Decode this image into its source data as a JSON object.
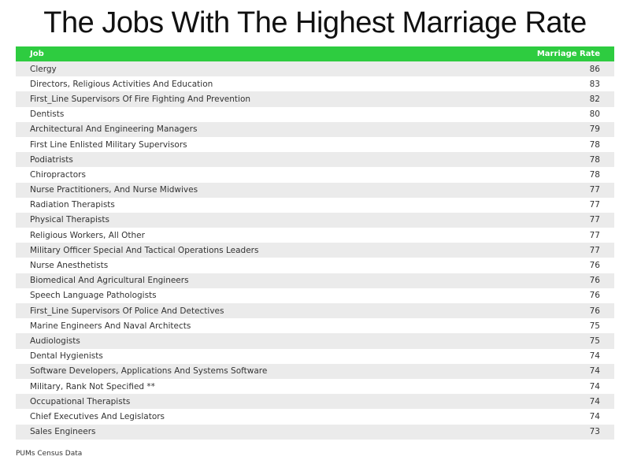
{
  "chart_data": {
    "type": "table",
    "title": "The Jobs With The Highest Marriage Rate",
    "columns": [
      "Job",
      "Marriage Rate"
    ],
    "rows": [
      [
        "Clergy",
        86
      ],
      [
        "Directors, Religious Activities And Education",
        83
      ],
      [
        "First_Line Supervisors Of Fire Fighting And Prevention",
        82
      ],
      [
        "Dentists",
        80
      ],
      [
        "Architectural And Engineering Managers",
        79
      ],
      [
        "First Line Enlisted Military Supervisors",
        78
      ],
      [
        "Podiatrists",
        78
      ],
      [
        "Chiropractors",
        78
      ],
      [
        "Nurse Practitioners, And Nurse Midwives",
        77
      ],
      [
        "Radiation Therapists",
        77
      ],
      [
        "Physical Therapists",
        77
      ],
      [
        "Religious Workers, All Other",
        77
      ],
      [
        "Military Officer Special And Tactical Operations Leaders",
        77
      ],
      [
        "Nurse Anesthetists",
        76
      ],
      [
        "Biomedical And Agricultural Engineers",
        76
      ],
      [
        "Speech Language Pathologists",
        76
      ],
      [
        "First_Line Supervisors Of Police And Detectives",
        76
      ],
      [
        "Marine Engineers And Naval Architects",
        75
      ],
      [
        "Audiologists",
        75
      ],
      [
        "Dental Hygienists",
        74
      ],
      [
        "Software Developers, Applications And Systems Software",
        74
      ],
      [
        "Military, Rank Not Specified **",
        74
      ],
      [
        "Occupational Therapists",
        74
      ],
      [
        "Chief Executives And Legislators",
        74
      ],
      [
        "Sales Engineers",
        73
      ]
    ],
    "source": "PUMs Census Data",
    "colors": {
      "header": "#2ecc40",
      "stripe": "#ebebeb"
    }
  }
}
